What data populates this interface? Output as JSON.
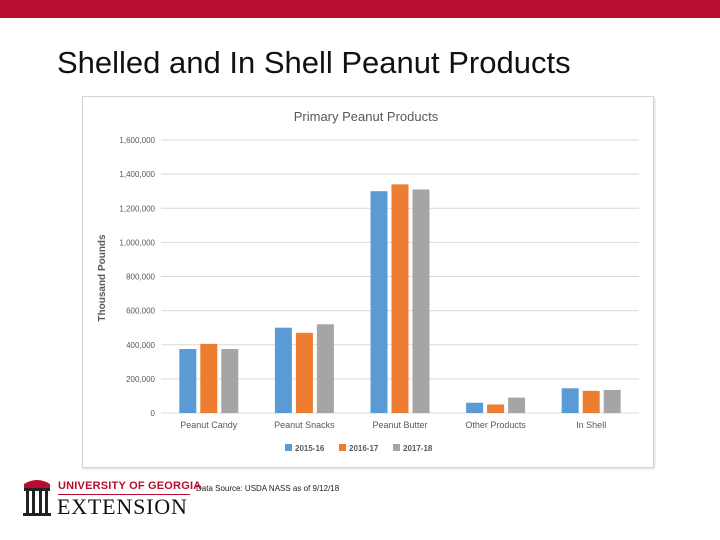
{
  "slide": {
    "title": "Shelled and In Shell Peanut Products",
    "source": "Data Source: USDA NASS as of 9/12/18"
  },
  "logo": {
    "university": "UNIVERSITY OF GEORGIA",
    "extension": "EXTENSION",
    "icon": "arch-icon"
  },
  "colors": {
    "accent": "#ba0c2f",
    "series": [
      "#5b9bd5",
      "#ed7d31",
      "#a5a5a5"
    ]
  },
  "chart_data": {
    "type": "bar",
    "title": "Primary Peanut Products",
    "ylabel": "Thousand Pounds",
    "xlabel": "",
    "categories": [
      "Peanut Candy",
      "Peanut Snacks",
      "Peanut Butter",
      "Other Products",
      "In Shell"
    ],
    "series": [
      {
        "name": "2015-16",
        "values": [
          375000,
          500000,
          1300000,
          60000,
          145000
        ]
      },
      {
        "name": "2016-17",
        "values": [
          405000,
          470000,
          1340000,
          50000,
          130000
        ]
      },
      {
        "name": "2017-18",
        "values": [
          375000,
          520000,
          1310000,
          90000,
          135000
        ]
      }
    ],
    "ylim": [
      0,
      1600000
    ],
    "yticks": [
      "0",
      "200,000",
      "400,000",
      "600,000",
      "800,000",
      "1,000,000",
      "1,200,000",
      "1,400,000",
      "1,600,000"
    ],
    "grid": true,
    "legend": "bottom"
  }
}
